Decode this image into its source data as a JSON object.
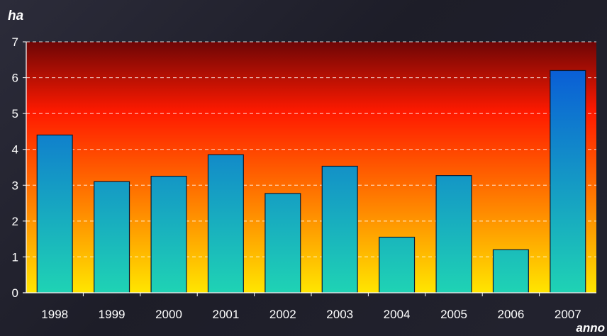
{
  "chart_data": {
    "type": "bar",
    "ylabel": "ha",
    "xlabel": "anno",
    "categories": [
      "1998",
      "1999",
      "2000",
      "2001",
      "2002",
      "2003",
      "2004",
      "2005",
      "2006",
      "2007"
    ],
    "values": [
      4.4,
      3.1,
      3.25,
      3.85,
      2.77,
      3.53,
      1.55,
      3.27,
      1.2,
      6.2
    ],
    "ylim": [
      0,
      7
    ],
    "yticks": [
      0,
      1,
      2,
      3,
      4,
      5,
      6,
      7
    ],
    "grid": true,
    "colors": {
      "plot_top": "#6e0606",
      "plot_mid": "#ff1a00",
      "plot_bottom": "#ffe600",
      "bar_top": "#0a5fd6",
      "bar_bottom": "#1fd3b4",
      "grid": "#ffffff",
      "axis": "#ffffff",
      "text": "#ffffff"
    }
  }
}
